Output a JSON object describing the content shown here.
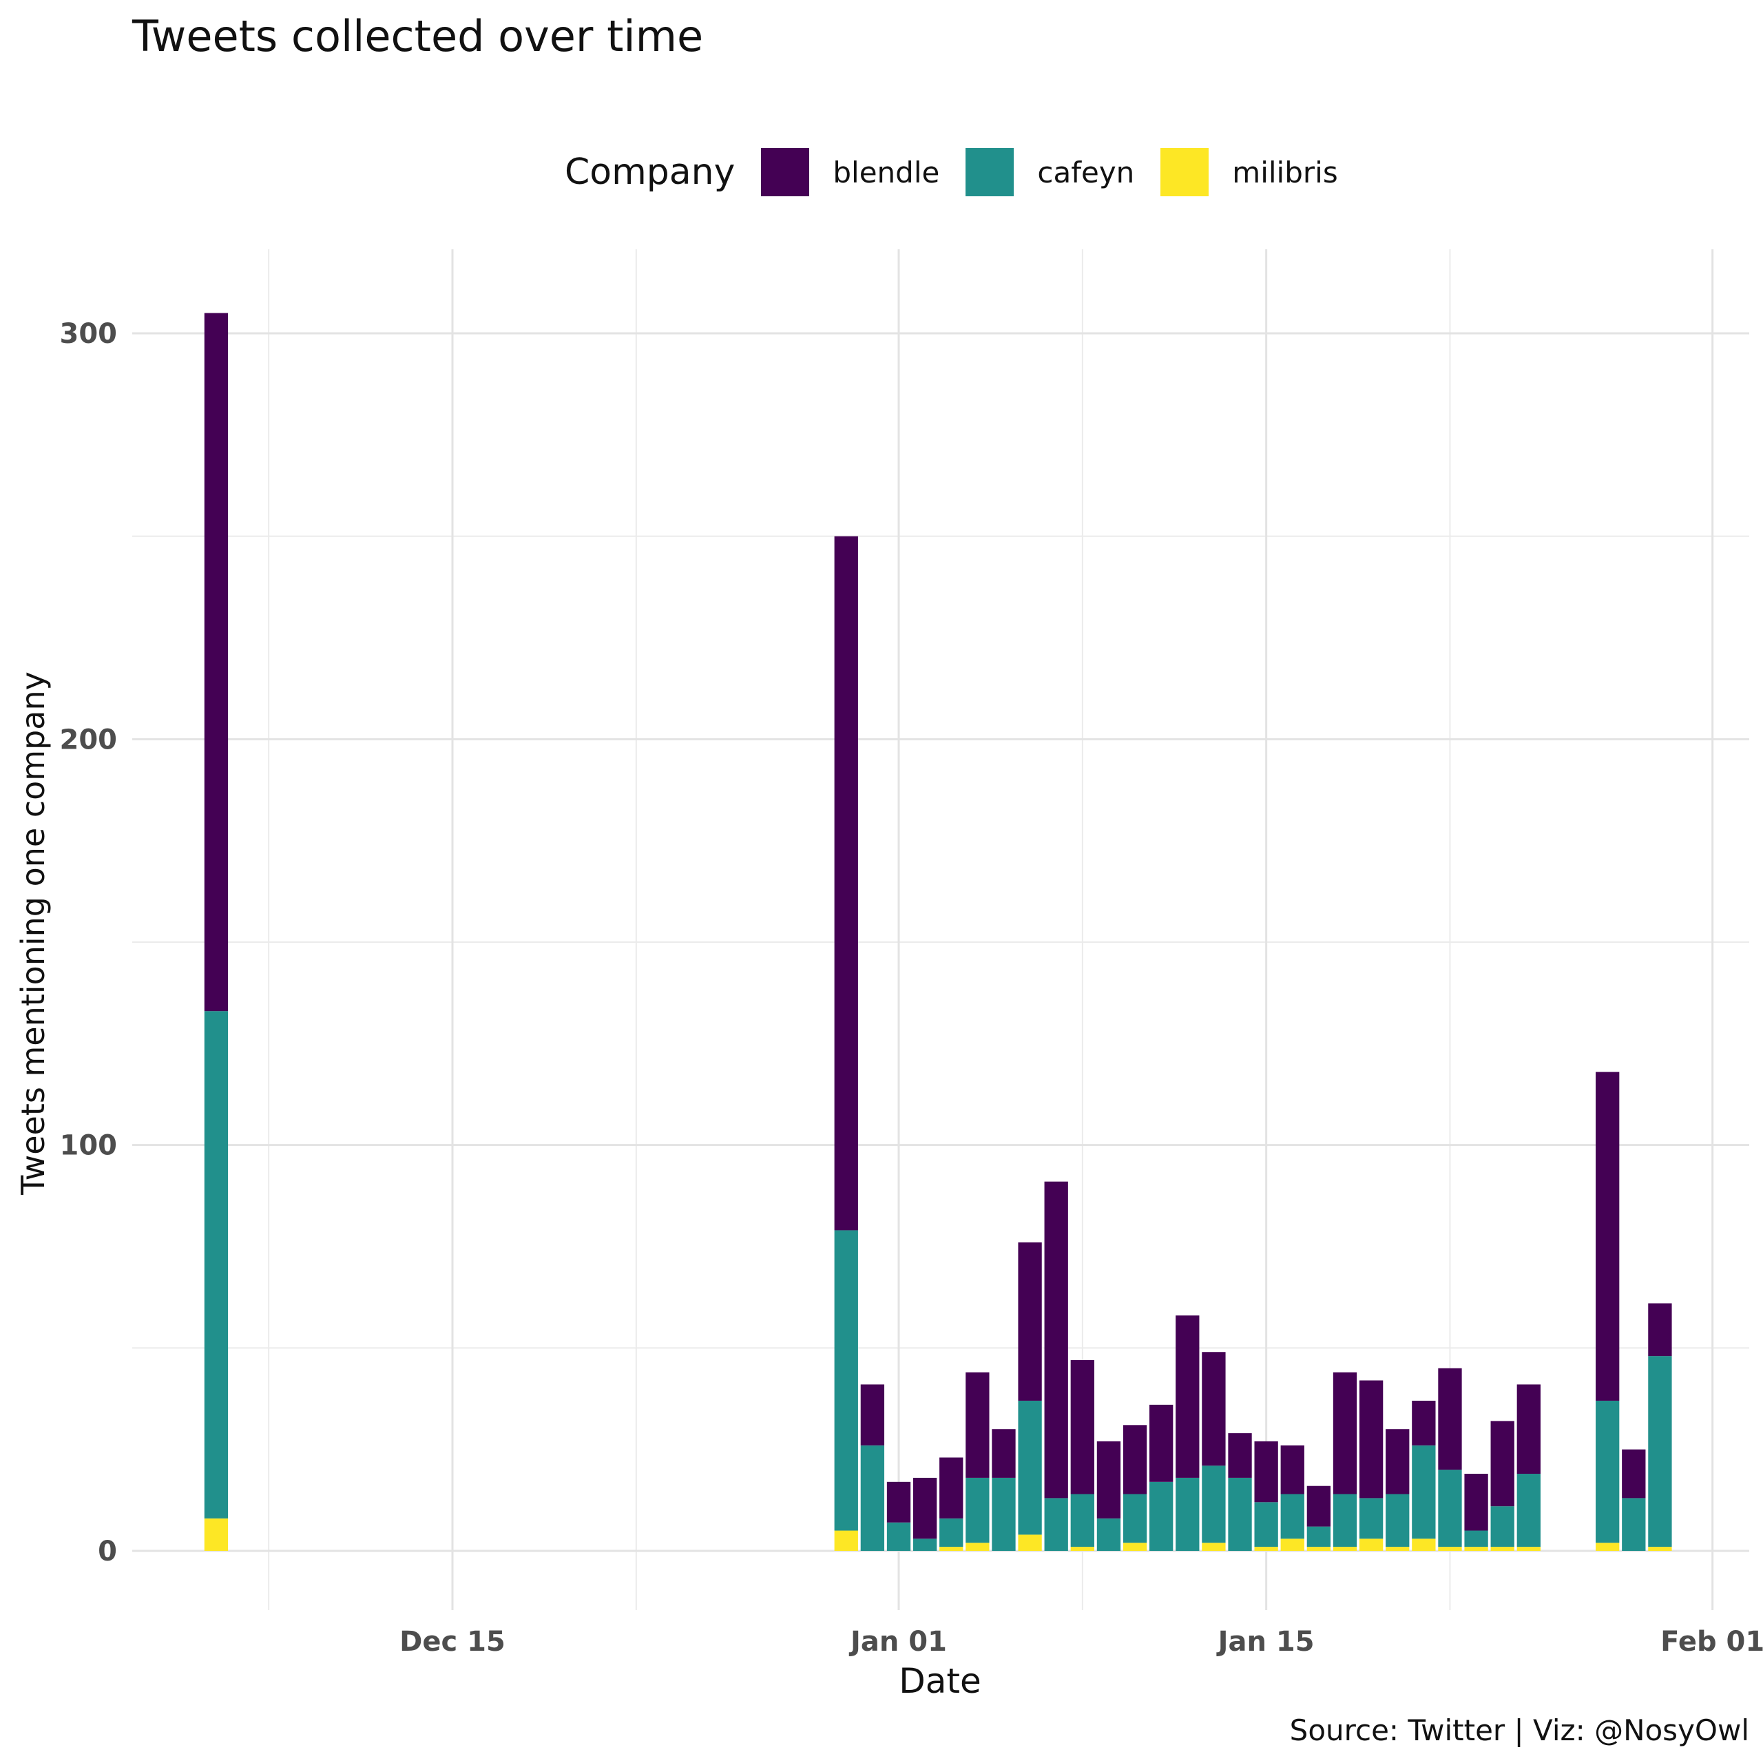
{
  "chart_data": {
    "type": "bar",
    "stacked": true,
    "title": "Tweets collected over time",
    "xlabel": "Date",
    "ylabel": "Tweets mentioning one company",
    "caption": "Source: Twitter | Viz: @NosyOwl",
    "legend": {
      "title": "Company",
      "position": "top"
    },
    "grid": true,
    "ylim": [
      0,
      315
    ],
    "yticks": [
      0,
      100,
      200,
      300
    ],
    "xlim": [
      "Dec 05",
      "Feb 01"
    ],
    "xticks": [
      {
        "date": "Dec 15",
        "label": "Dec 15"
      },
      {
        "date": "Jan 01",
        "label": "Jan 01"
      },
      {
        "date": "Jan 15",
        "label": "Jan 15"
      },
      {
        "date": "Feb 01",
        "label": "Feb 01"
      }
    ],
    "x": [
      "Dec 06",
      "Dec 30",
      "Dec 31",
      "Jan 01",
      "Jan 02",
      "Jan 03",
      "Jan 04",
      "Jan 05",
      "Jan 06",
      "Jan 07",
      "Jan 08",
      "Jan 09",
      "Jan 10",
      "Jan 11",
      "Jan 12",
      "Jan 13",
      "Jan 14",
      "Jan 15",
      "Jan 16",
      "Jan 17",
      "Jan 18",
      "Jan 19",
      "Jan 20",
      "Jan 21",
      "Jan 22",
      "Jan 23",
      "Jan 24",
      "Jan 25",
      "Jan 28",
      "Jan 29",
      "Jan 30"
    ],
    "series": [
      {
        "name": "milibris",
        "color": "#FDE725",
        "values": [
          8,
          5,
          0,
          0,
          0,
          1,
          2,
          0,
          4,
          0,
          1,
          0,
          2,
          0,
          0,
          2,
          0,
          1,
          3,
          1,
          1,
          3,
          1,
          3,
          1,
          1,
          1,
          1,
          2,
          0,
          1
        ]
      },
      {
        "name": "cafeyn",
        "color": "#21908C",
        "values": [
          125,
          74,
          26,
          7,
          3,
          7,
          16,
          18,
          33,
          13,
          13,
          8,
          12,
          17,
          18,
          19,
          18,
          11,
          11,
          5,
          13,
          10,
          13,
          23,
          19,
          4,
          10,
          18,
          35,
          13,
          47
        ]
      },
      {
        "name": "blendle",
        "color": "#440154",
        "values": [
          172,
          171,
          15,
          10,
          15,
          15,
          26,
          12,
          39,
          78,
          33,
          19,
          17,
          19,
          40,
          28,
          11,
          15,
          12,
          10,
          30,
          29,
          16,
          11,
          25,
          14,
          21,
          22,
          81,
          12,
          13
        ]
      }
    ]
  }
}
